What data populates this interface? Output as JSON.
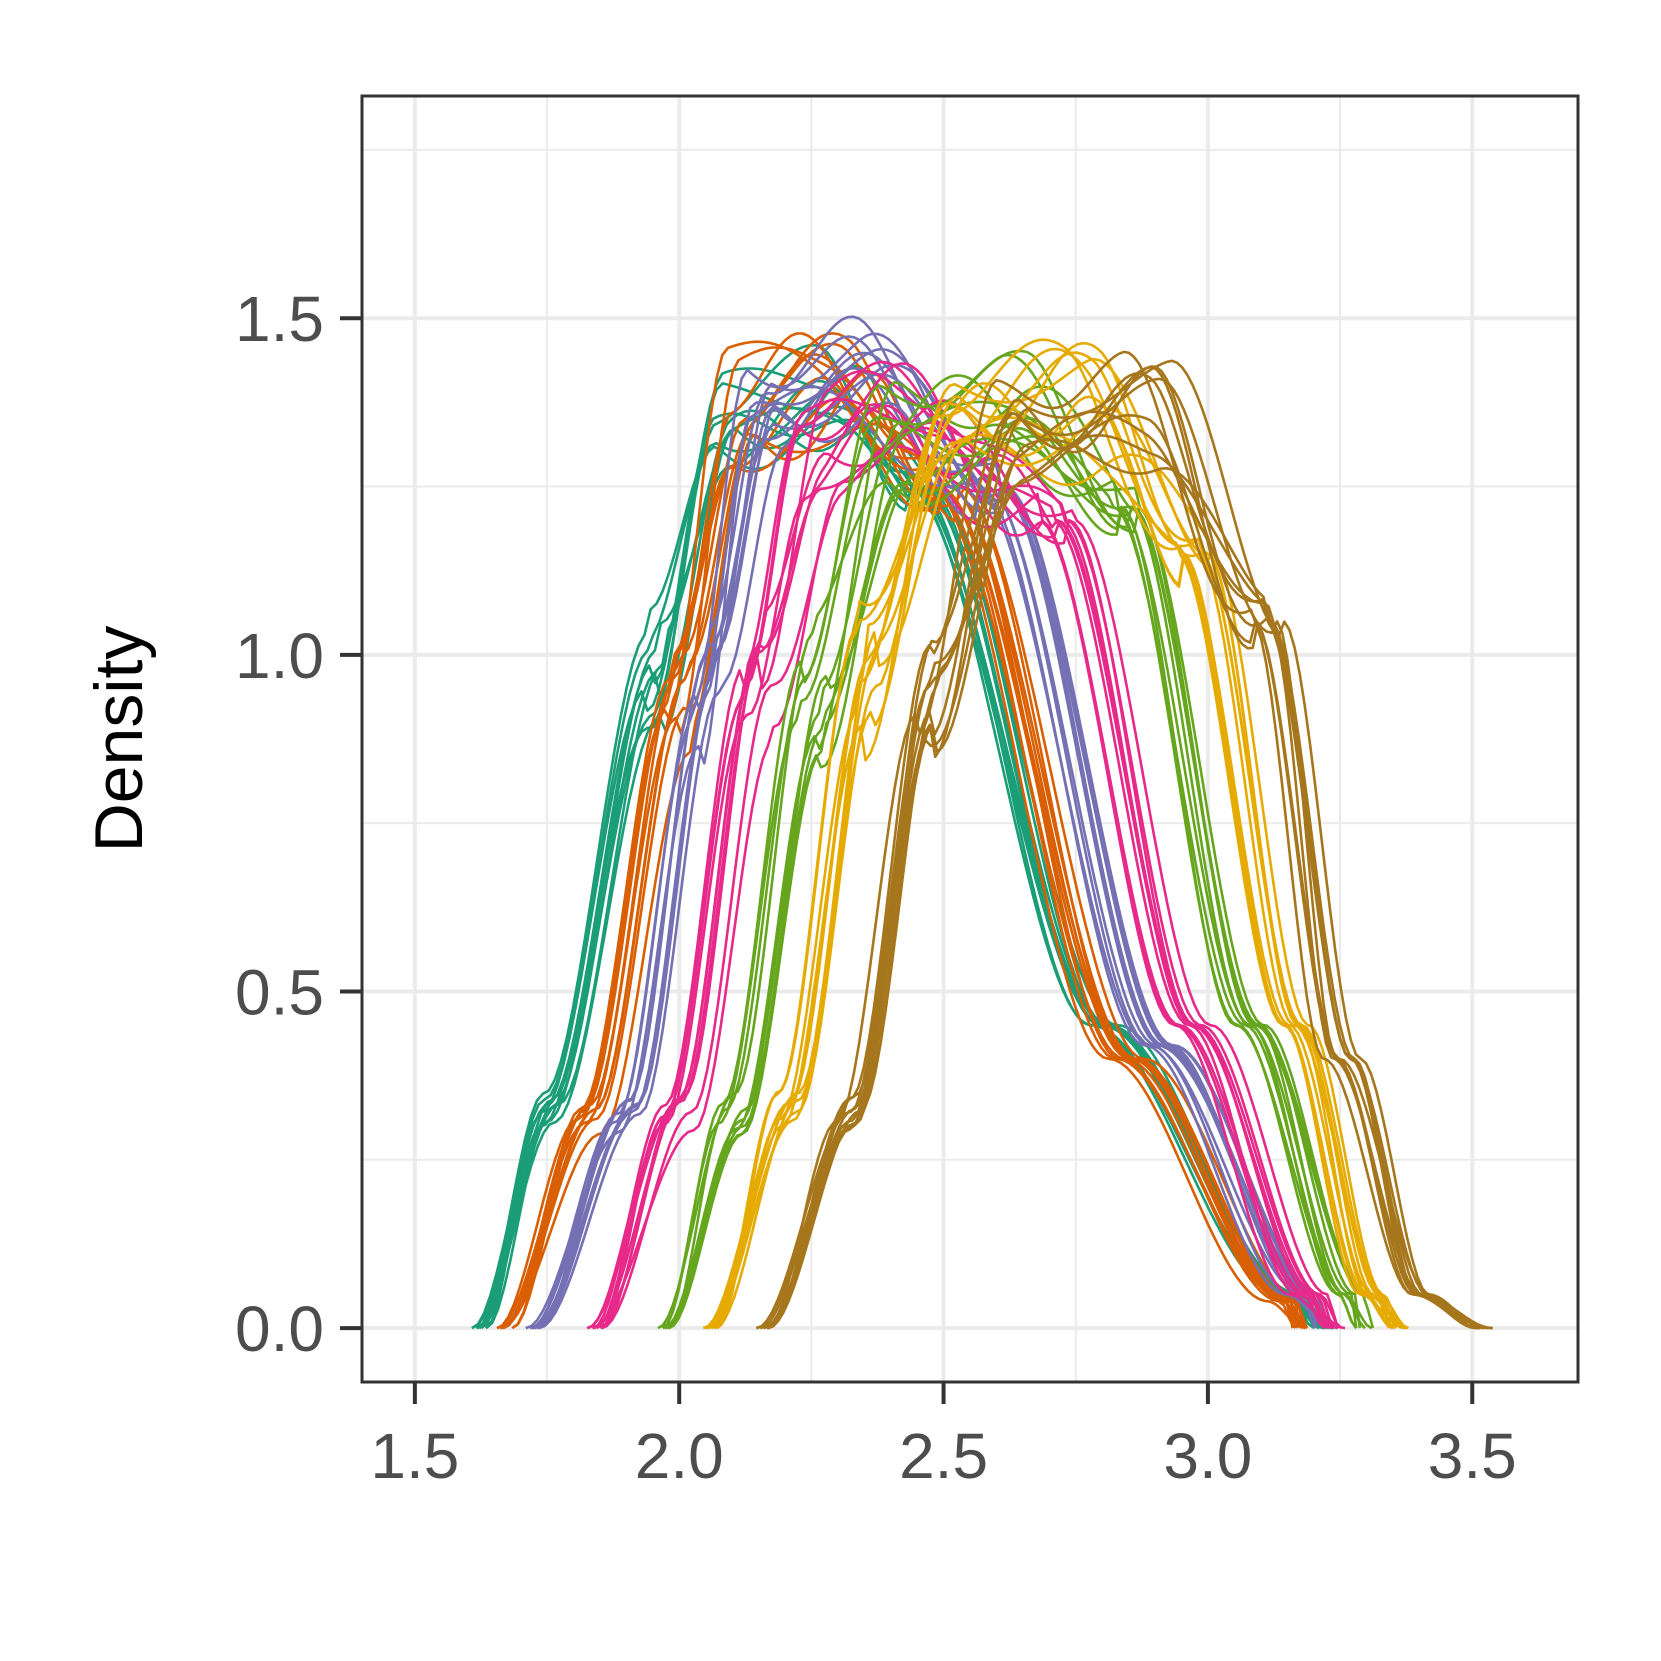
{
  "chart_data": {
    "type": "line",
    "title": "",
    "xlabel": "",
    "ylabel": "Density",
    "xlim": [
      1.4,
      3.7
    ],
    "ylim": [
      -0.08,
      1.83
    ],
    "x_ticks": [
      1.5,
      2.0,
      2.5,
      3.0,
      3.5
    ],
    "x_tick_labels": [
      "1.5",
      "2.0",
      "2.5",
      "3.0",
      "3.5"
    ],
    "y_ticks": [
      0.0,
      0.5,
      1.0,
      1.5
    ],
    "y_tick_labels": [
      "0.0",
      "0.5",
      "1.0",
      "1.5"
    ],
    "grid": true,
    "legend": "none",
    "groups": [
      {
        "color": "#1b9e77",
        "x_range": [
          1.62,
          3.22
        ],
        "ramp_x": [
          1.75,
          1.95
        ],
        "peak_x": 2.28,
        "peak": 1.38,
        "fall_x": [
          2.45,
          2.8,
          3.15
        ],
        "fall_y": [
          1.25,
          0.45,
          0.05
        ]
      },
      {
        "color": "#d95f02",
        "x_range": [
          1.67,
          3.18
        ],
        "ramp_x": [
          1.83,
          2.0
        ],
        "peak_x": 2.3,
        "peak": 1.4,
        "fall_x": [
          2.5,
          2.85,
          3.15
        ],
        "fall_y": [
          1.25,
          0.4,
          0.04
        ]
      },
      {
        "color": "#7570b3",
        "x_range": [
          1.72,
          3.22
        ],
        "ramp_x": [
          1.9,
          2.05
        ],
        "peak_x": 2.32,
        "peak": 1.4,
        "fall_x": [
          2.58,
          2.9,
          3.18
        ],
        "fall_y": [
          1.25,
          0.42,
          0.05
        ]
      },
      {
        "color": "#e7298a",
        "x_range": [
          1.84,
          3.24
        ],
        "ramp_x": [
          2.0,
          2.15
        ],
        "peak_x": 2.45,
        "peak": 1.35,
        "fall_x": [
          2.72,
          2.98,
          3.2
        ],
        "fall_y": [
          1.2,
          0.45,
          0.05
        ]
      },
      {
        "color": "#66a61e",
        "x_range": [
          1.97,
          3.3
        ],
        "ramp_x": [
          2.1,
          2.25
        ],
        "peak_x": 2.62,
        "peak": 1.36,
        "fall_x": [
          2.83,
          3.08,
          3.26
        ],
        "fall_y": [
          1.22,
          0.45,
          0.05
        ]
      },
      {
        "color": "#e6ab02",
        "x_range": [
          2.06,
          3.36
        ],
        "ramp_x": [
          2.2,
          2.35
        ],
        "peak_x": 2.75,
        "peak": 1.38,
        "fall_x": [
          2.97,
          3.15,
          3.3
        ],
        "fall_y": [
          1.15,
          0.45,
          0.05
        ]
      },
      {
        "color": "#a6761d",
        "x_range": [
          2.16,
          3.52
        ],
        "ramp_x": [
          2.32,
          2.47
        ],
        "peak_x": 2.88,
        "peak": 1.38,
        "fall_x": [
          3.1,
          3.25,
          3.4
        ],
        "fall_y": [
          1.05,
          0.4,
          0.05
        ]
      }
    ],
    "curves_per_group": 10
  }
}
